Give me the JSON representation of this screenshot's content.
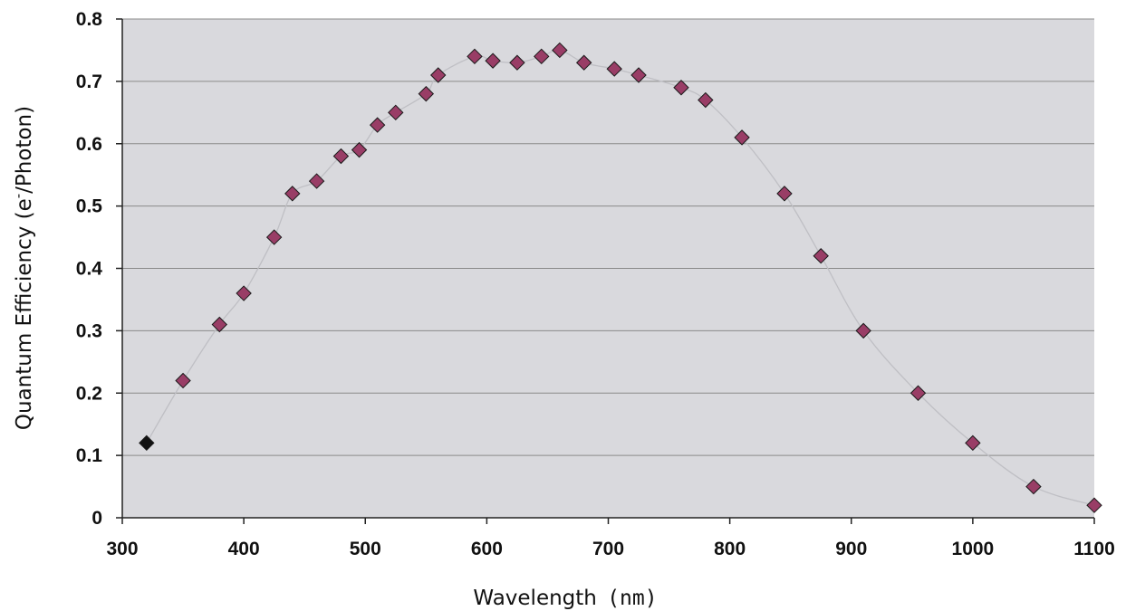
{
  "chart_data": {
    "type": "scatter",
    "title": "",
    "xlabel": "Wavelength",
    "xlabel_unit": "(nm)",
    "ylabel": "Quantum Efficiency (e",
    "ylabel_superscript": "-",
    "ylabel_suffix": "/Photon)",
    "xlim": [
      300,
      1100
    ],
    "ylim": [
      0,
      0.8
    ],
    "x_ticks": [
      "300",
      "400",
      "500",
      "600",
      "700",
      "800",
      "900",
      "1000",
      "1100"
    ],
    "y_ticks": [
      "0",
      "0.1",
      "0.2",
      "0.3",
      "0.4",
      "0.5",
      "0.6",
      "0.7",
      "0.8"
    ],
    "grid": "horizontal",
    "plot_background": "#d9d9dd",
    "line_color": "#bfbfc4",
    "marker": "diamond",
    "marker_color": "#993d66",
    "first_marker_color": "#111111",
    "series": [
      {
        "x": [
          320,
          350,
          380,
          400,
          425,
          440,
          460,
          480,
          495,
          510,
          525,
          550,
          560,
          590,
          605,
          625,
          645,
          660,
          680,
          705,
          725,
          760,
          780,
          810,
          845,
          875,
          910,
          955,
          1000,
          1050,
          1100
        ],
        "y": [
          0.12,
          0.22,
          0.31,
          0.36,
          0.45,
          0.52,
          0.54,
          0.58,
          0.59,
          0.63,
          0.65,
          0.68,
          0.71,
          0.74,
          0.733,
          0.73,
          0.74,
          0.75,
          0.73,
          0.72,
          0.71,
          0.69,
          0.67,
          0.61,
          0.52,
          0.42,
          0.3,
          0.2,
          0.12,
          0.05,
          0.02
        ]
      }
    ]
  }
}
